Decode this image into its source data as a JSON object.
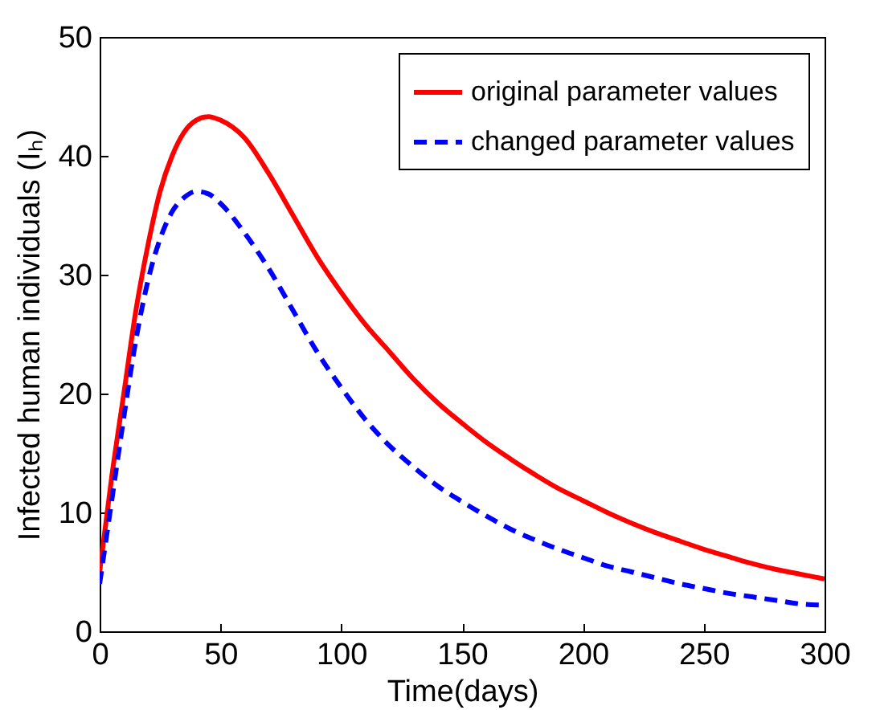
{
  "chart_data": {
    "type": "line",
    "xlabel": "Time(days)",
    "ylabel": "Infected human individuals (Iₕ)",
    "x": [
      0,
      5,
      10,
      15,
      20,
      25,
      30,
      35,
      40,
      45,
      50,
      60,
      70,
      80,
      90,
      100,
      110,
      120,
      130,
      140,
      150,
      160,
      170,
      180,
      190,
      200,
      210,
      220,
      230,
      240,
      250,
      260,
      270,
      280,
      290,
      300
    ],
    "series": [
      {
        "name": "original parameter values",
        "color": "#ff0000",
        "line_style": "solid",
        "values": [
          5,
          13,
          20,
          27,
          32.5,
          37,
          40,
          42,
          43,
          43.3,
          43,
          41.5,
          38.5,
          35,
          31.5,
          28.5,
          25.8,
          23.5,
          21.2,
          19.2,
          17.5,
          15.9,
          14.5,
          13.2,
          12,
          11,
          10,
          9.1,
          8.3,
          7.6,
          6.9,
          6.3,
          5.7,
          5.2,
          4.8,
          4.4
        ]
      },
      {
        "name": "changed parameter values",
        "color": "#0000ff",
        "line_style": "dashed",
        "values": [
          4,
          11,
          18,
          24.5,
          29.5,
          33,
          35.3,
          36.5,
          37,
          36.8,
          36,
          33.5,
          30.5,
          27,
          23.5,
          20.5,
          17.8,
          15.6,
          13.8,
          12.2,
          10.9,
          9.7,
          8.6,
          7.7,
          6.9,
          6.2,
          5.5,
          5,
          4.5,
          4,
          3.6,
          3.2,
          2.9,
          2.6,
          2.3,
          2.2
        ]
      }
    ],
    "xlim": [
      0,
      300
    ],
    "xticks": [
      0,
      50,
      100,
      150,
      200,
      250,
      300
    ],
    "ylim": [
      0,
      50
    ],
    "yticks": [
      0,
      10,
      20,
      30,
      40,
      50
    ],
    "grid": false,
    "legend": "top right",
    "marker": "none"
  }
}
